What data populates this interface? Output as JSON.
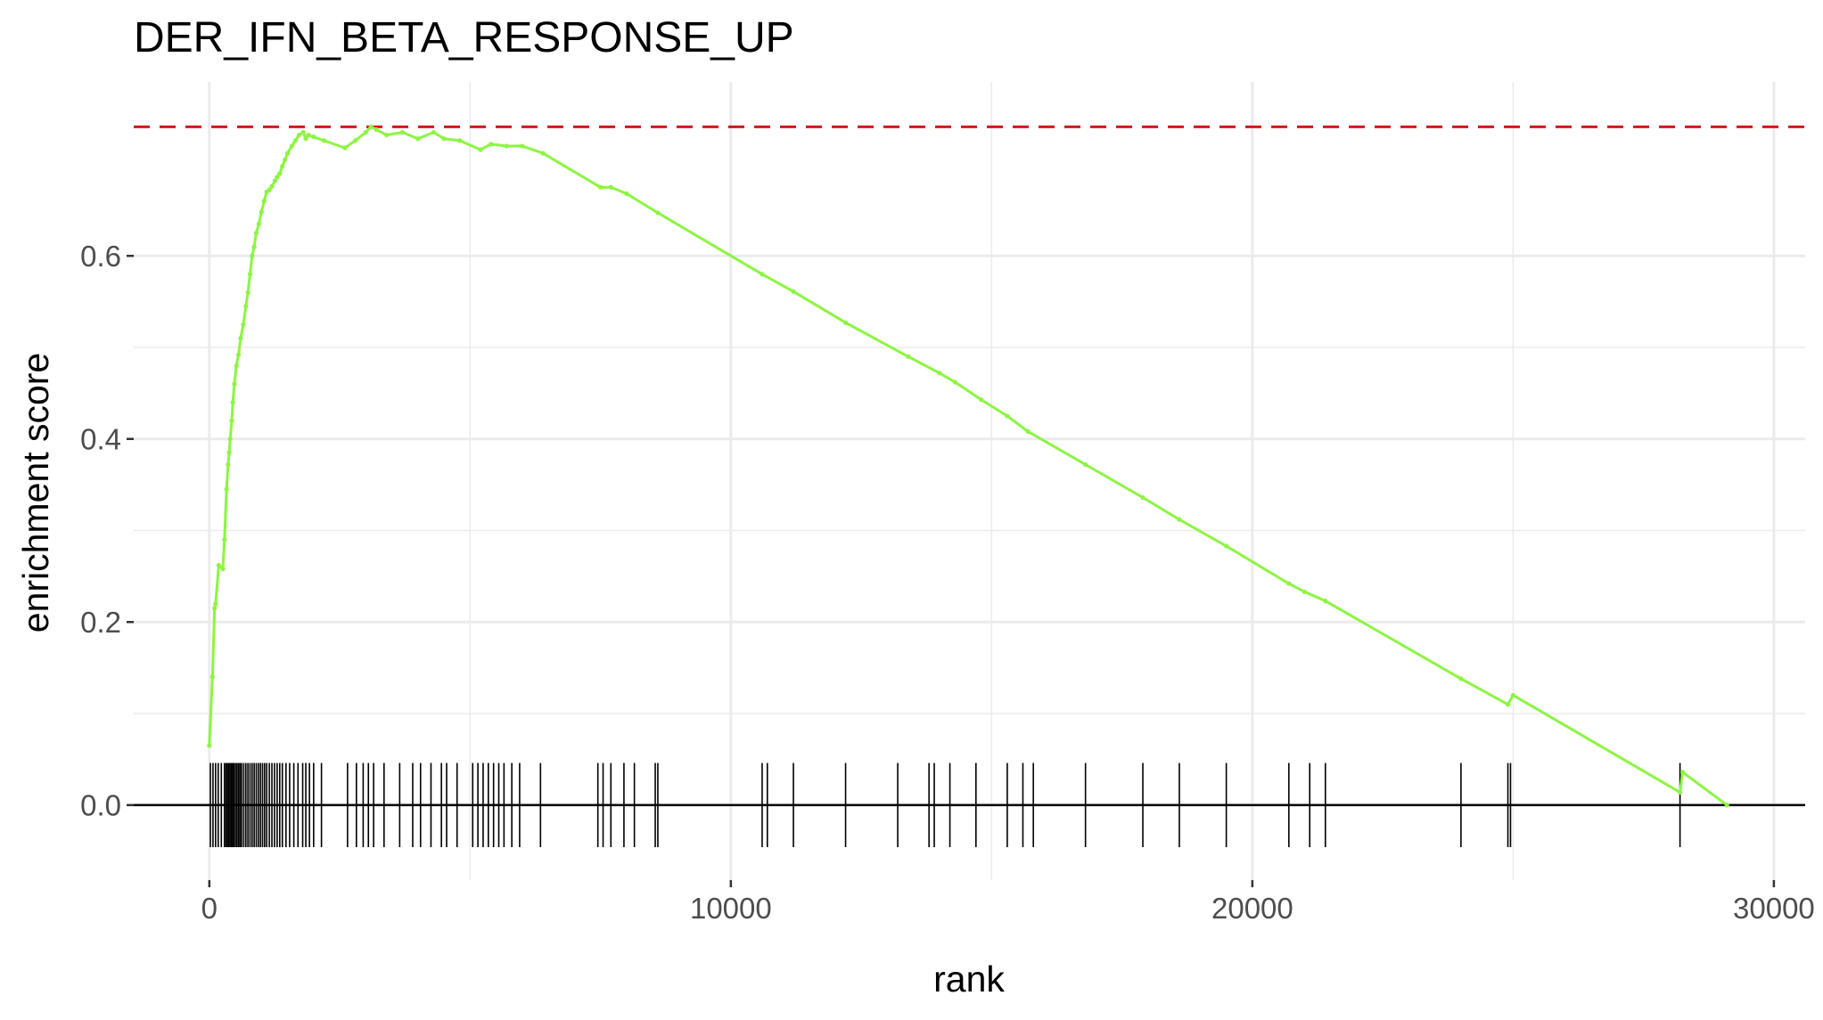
{
  "chart_data": {
    "type": "line",
    "title": "DER_IFN_BETA_RESPONSE_UP",
    "xlabel": "rank",
    "ylabel": "enrichment score",
    "xlim": [
      -1450,
      30600
    ],
    "ylim": [
      -0.082,
      0.79
    ],
    "x_ticks": [
      0,
      10000,
      20000,
      30000
    ],
    "x_tick_labels": [
      "0",
      "10000",
      "20000",
      "30000"
    ],
    "y_ticks": [
      0.0,
      0.2,
      0.4,
      0.6
    ],
    "y_tick_labels": [
      "0.0",
      "0.2",
      "0.4",
      "0.6"
    ],
    "grid": true,
    "legend": "none",
    "max_es": 0.741,
    "colors": {
      "curve": "#8cf542",
      "max_line": "#d9141c",
      "ticks": "#000000",
      "grid": "#ebebeb",
      "zero_line": "#000000"
    },
    "series": [
      {
        "x": [
          0,
          60,
          100,
          120,
          180,
          260,
          290,
          330,
          360,
          380,
          400,
          430,
          450,
          480,
          520,
          560,
          600,
          650,
          700,
          740,
          780,
          820,
          860,
          900,
          950,
          1000,
          1050,
          1100,
          1150,
          1200,
          1260,
          1300,
          1350,
          1400,
          1450,
          1500,
          1580,
          1650,
          1720,
          1800,
          1850,
          1900,
          2000,
          2200,
          2600,
          2800,
          3000,
          3100,
          3200,
          3400,
          3700,
          4000,
          4300,
          4500,
          4800,
          5200,
          5400,
          5700,
          6000,
          6400,
          7500,
          7700,
          8000,
          8600,
          10600,
          11200,
          12200,
          13400,
          14000,
          14300,
          14800,
          15300,
          15700,
          16800,
          17900,
          18600,
          19500,
          20700,
          21000,
          21400,
          24000,
          24900,
          25000,
          28200,
          28250,
          29100
        ],
        "y": [
          0.065,
          0.14,
          0.215,
          0.22,
          0.262,
          0.258,
          0.29,
          0.345,
          0.372,
          0.385,
          0.4,
          0.42,
          0.44,
          0.46,
          0.48,
          0.492,
          0.51,
          0.525,
          0.545,
          0.56,
          0.58,
          0.6,
          0.61,
          0.625,
          0.635,
          0.648,
          0.66,
          0.67,
          0.672,
          0.676,
          0.682,
          0.686,
          0.69,
          0.698,
          0.705,
          0.712,
          0.72,
          0.726,
          0.732,
          0.735,
          0.728,
          0.732,
          0.73,
          0.726,
          0.718,
          0.726,
          0.735,
          0.741,
          0.738,
          0.732,
          0.735,
          0.728,
          0.735,
          0.728,
          0.726,
          0.716,
          0.722,
          0.72,
          0.72,
          0.712,
          0.675,
          0.675,
          0.668,
          0.647,
          0.58,
          0.561,
          0.527,
          0.49,
          0.472,
          0.462,
          0.443,
          0.425,
          0.408,
          0.372,
          0.336,
          0.312,
          0.283,
          0.242,
          0.233,
          0.223,
          0.138,
          0.11,
          0.12,
          0.014,
          0.036,
          0.0
        ]
      }
    ],
    "gene_hits": [
      20,
      70,
      120,
      170,
      230,
      290,
      320,
      345,
      370,
      395,
      420,
      445,
      470,
      500,
      530,
      560,
      590,
      620,
      660,
      700,
      740,
      780,
      820,
      860,
      900,
      940,
      980,
      1020,
      1060,
      1100,
      1150,
      1200,
      1250,
      1300,
      1350,
      1400,
      1470,
      1540,
      1620,
      1700,
      1790,
      1850,
      1920,
      2000,
      2150,
      2650,
      2820,
      2950,
      3050,
      3150,
      3350,
      3650,
      3900,
      4050,
      4250,
      4450,
      4550,
      4750,
      5050,
      5150,
      5250,
      5350,
      5450,
      5550,
      5650,
      5800,
      5950,
      6350,
      7450,
      7550,
      7700,
      7950,
      8150,
      8550,
      8600,
      10600,
      10700,
      11200,
      12200,
      13200,
      13800,
      13900,
      14200,
      14700,
      15300,
      15600,
      15800,
      16800,
      17900,
      18600,
      19500,
      20700,
      21100,
      21400,
      24000,
      24900,
      24950,
      28200
    ]
  }
}
